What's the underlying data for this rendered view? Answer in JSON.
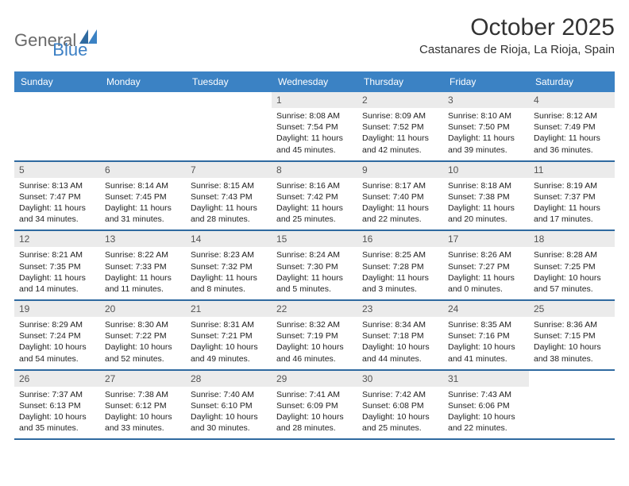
{
  "logo": {
    "text1": "General",
    "text2": "Blue"
  },
  "title": "October 2025",
  "location": "Castanares de Rioja, La Rioja, Spain",
  "colors": {
    "header_blue": "#3b82c4",
    "row_border": "#2f6aa0",
    "daynum_bg": "#ebebeb",
    "logo_gray": "#6a6a6a",
    "logo_blue": "#3b7fc4",
    "text": "#222222",
    "bg": "#ffffff"
  },
  "weekdays": [
    "Sunday",
    "Monday",
    "Tuesday",
    "Wednesday",
    "Thursday",
    "Friday",
    "Saturday"
  ],
  "weeks": [
    [
      {
        "n": "",
        "empty": true
      },
      {
        "n": "",
        "empty": true
      },
      {
        "n": "",
        "empty": true
      },
      {
        "n": "1",
        "sunrise": "Sunrise: 8:08 AM",
        "sunset": "Sunset: 7:54 PM",
        "daylight1": "Daylight: 11 hours",
        "daylight2": "and 45 minutes."
      },
      {
        "n": "2",
        "sunrise": "Sunrise: 8:09 AM",
        "sunset": "Sunset: 7:52 PM",
        "daylight1": "Daylight: 11 hours",
        "daylight2": "and 42 minutes."
      },
      {
        "n": "3",
        "sunrise": "Sunrise: 8:10 AM",
        "sunset": "Sunset: 7:50 PM",
        "daylight1": "Daylight: 11 hours",
        "daylight2": "and 39 minutes."
      },
      {
        "n": "4",
        "sunrise": "Sunrise: 8:12 AM",
        "sunset": "Sunset: 7:49 PM",
        "daylight1": "Daylight: 11 hours",
        "daylight2": "and 36 minutes."
      }
    ],
    [
      {
        "n": "5",
        "sunrise": "Sunrise: 8:13 AM",
        "sunset": "Sunset: 7:47 PM",
        "daylight1": "Daylight: 11 hours",
        "daylight2": "and 34 minutes."
      },
      {
        "n": "6",
        "sunrise": "Sunrise: 8:14 AM",
        "sunset": "Sunset: 7:45 PM",
        "daylight1": "Daylight: 11 hours",
        "daylight2": "and 31 minutes."
      },
      {
        "n": "7",
        "sunrise": "Sunrise: 8:15 AM",
        "sunset": "Sunset: 7:43 PM",
        "daylight1": "Daylight: 11 hours",
        "daylight2": "and 28 minutes."
      },
      {
        "n": "8",
        "sunrise": "Sunrise: 8:16 AM",
        "sunset": "Sunset: 7:42 PM",
        "daylight1": "Daylight: 11 hours",
        "daylight2": "and 25 minutes."
      },
      {
        "n": "9",
        "sunrise": "Sunrise: 8:17 AM",
        "sunset": "Sunset: 7:40 PM",
        "daylight1": "Daylight: 11 hours",
        "daylight2": "and 22 minutes."
      },
      {
        "n": "10",
        "sunrise": "Sunrise: 8:18 AM",
        "sunset": "Sunset: 7:38 PM",
        "daylight1": "Daylight: 11 hours",
        "daylight2": "and 20 minutes."
      },
      {
        "n": "11",
        "sunrise": "Sunrise: 8:19 AM",
        "sunset": "Sunset: 7:37 PM",
        "daylight1": "Daylight: 11 hours",
        "daylight2": "and 17 minutes."
      }
    ],
    [
      {
        "n": "12",
        "sunrise": "Sunrise: 8:21 AM",
        "sunset": "Sunset: 7:35 PM",
        "daylight1": "Daylight: 11 hours",
        "daylight2": "and 14 minutes."
      },
      {
        "n": "13",
        "sunrise": "Sunrise: 8:22 AM",
        "sunset": "Sunset: 7:33 PM",
        "daylight1": "Daylight: 11 hours",
        "daylight2": "and 11 minutes."
      },
      {
        "n": "14",
        "sunrise": "Sunrise: 8:23 AM",
        "sunset": "Sunset: 7:32 PM",
        "daylight1": "Daylight: 11 hours",
        "daylight2": "and 8 minutes."
      },
      {
        "n": "15",
        "sunrise": "Sunrise: 8:24 AM",
        "sunset": "Sunset: 7:30 PM",
        "daylight1": "Daylight: 11 hours",
        "daylight2": "and 5 minutes."
      },
      {
        "n": "16",
        "sunrise": "Sunrise: 8:25 AM",
        "sunset": "Sunset: 7:28 PM",
        "daylight1": "Daylight: 11 hours",
        "daylight2": "and 3 minutes."
      },
      {
        "n": "17",
        "sunrise": "Sunrise: 8:26 AM",
        "sunset": "Sunset: 7:27 PM",
        "daylight1": "Daylight: 11 hours",
        "daylight2": "and 0 minutes."
      },
      {
        "n": "18",
        "sunrise": "Sunrise: 8:28 AM",
        "sunset": "Sunset: 7:25 PM",
        "daylight1": "Daylight: 10 hours",
        "daylight2": "and 57 minutes."
      }
    ],
    [
      {
        "n": "19",
        "sunrise": "Sunrise: 8:29 AM",
        "sunset": "Sunset: 7:24 PM",
        "daylight1": "Daylight: 10 hours",
        "daylight2": "and 54 minutes."
      },
      {
        "n": "20",
        "sunrise": "Sunrise: 8:30 AM",
        "sunset": "Sunset: 7:22 PM",
        "daylight1": "Daylight: 10 hours",
        "daylight2": "and 52 minutes."
      },
      {
        "n": "21",
        "sunrise": "Sunrise: 8:31 AM",
        "sunset": "Sunset: 7:21 PM",
        "daylight1": "Daylight: 10 hours",
        "daylight2": "and 49 minutes."
      },
      {
        "n": "22",
        "sunrise": "Sunrise: 8:32 AM",
        "sunset": "Sunset: 7:19 PM",
        "daylight1": "Daylight: 10 hours",
        "daylight2": "and 46 minutes."
      },
      {
        "n": "23",
        "sunrise": "Sunrise: 8:34 AM",
        "sunset": "Sunset: 7:18 PM",
        "daylight1": "Daylight: 10 hours",
        "daylight2": "and 44 minutes."
      },
      {
        "n": "24",
        "sunrise": "Sunrise: 8:35 AM",
        "sunset": "Sunset: 7:16 PM",
        "daylight1": "Daylight: 10 hours",
        "daylight2": "and 41 minutes."
      },
      {
        "n": "25",
        "sunrise": "Sunrise: 8:36 AM",
        "sunset": "Sunset: 7:15 PM",
        "daylight1": "Daylight: 10 hours",
        "daylight2": "and 38 minutes."
      }
    ],
    [
      {
        "n": "26",
        "sunrise": "Sunrise: 7:37 AM",
        "sunset": "Sunset: 6:13 PM",
        "daylight1": "Daylight: 10 hours",
        "daylight2": "and 35 minutes."
      },
      {
        "n": "27",
        "sunrise": "Sunrise: 7:38 AM",
        "sunset": "Sunset: 6:12 PM",
        "daylight1": "Daylight: 10 hours",
        "daylight2": "and 33 minutes."
      },
      {
        "n": "28",
        "sunrise": "Sunrise: 7:40 AM",
        "sunset": "Sunset: 6:10 PM",
        "daylight1": "Daylight: 10 hours",
        "daylight2": "and 30 minutes."
      },
      {
        "n": "29",
        "sunrise": "Sunrise: 7:41 AM",
        "sunset": "Sunset: 6:09 PM",
        "daylight1": "Daylight: 10 hours",
        "daylight2": "and 28 minutes."
      },
      {
        "n": "30",
        "sunrise": "Sunrise: 7:42 AM",
        "sunset": "Sunset: 6:08 PM",
        "daylight1": "Daylight: 10 hours",
        "daylight2": "and 25 minutes."
      },
      {
        "n": "31",
        "sunrise": "Sunrise: 7:43 AM",
        "sunset": "Sunset: 6:06 PM",
        "daylight1": "Daylight: 10 hours",
        "daylight2": "and 22 minutes."
      },
      {
        "n": "",
        "empty": true
      }
    ]
  ]
}
